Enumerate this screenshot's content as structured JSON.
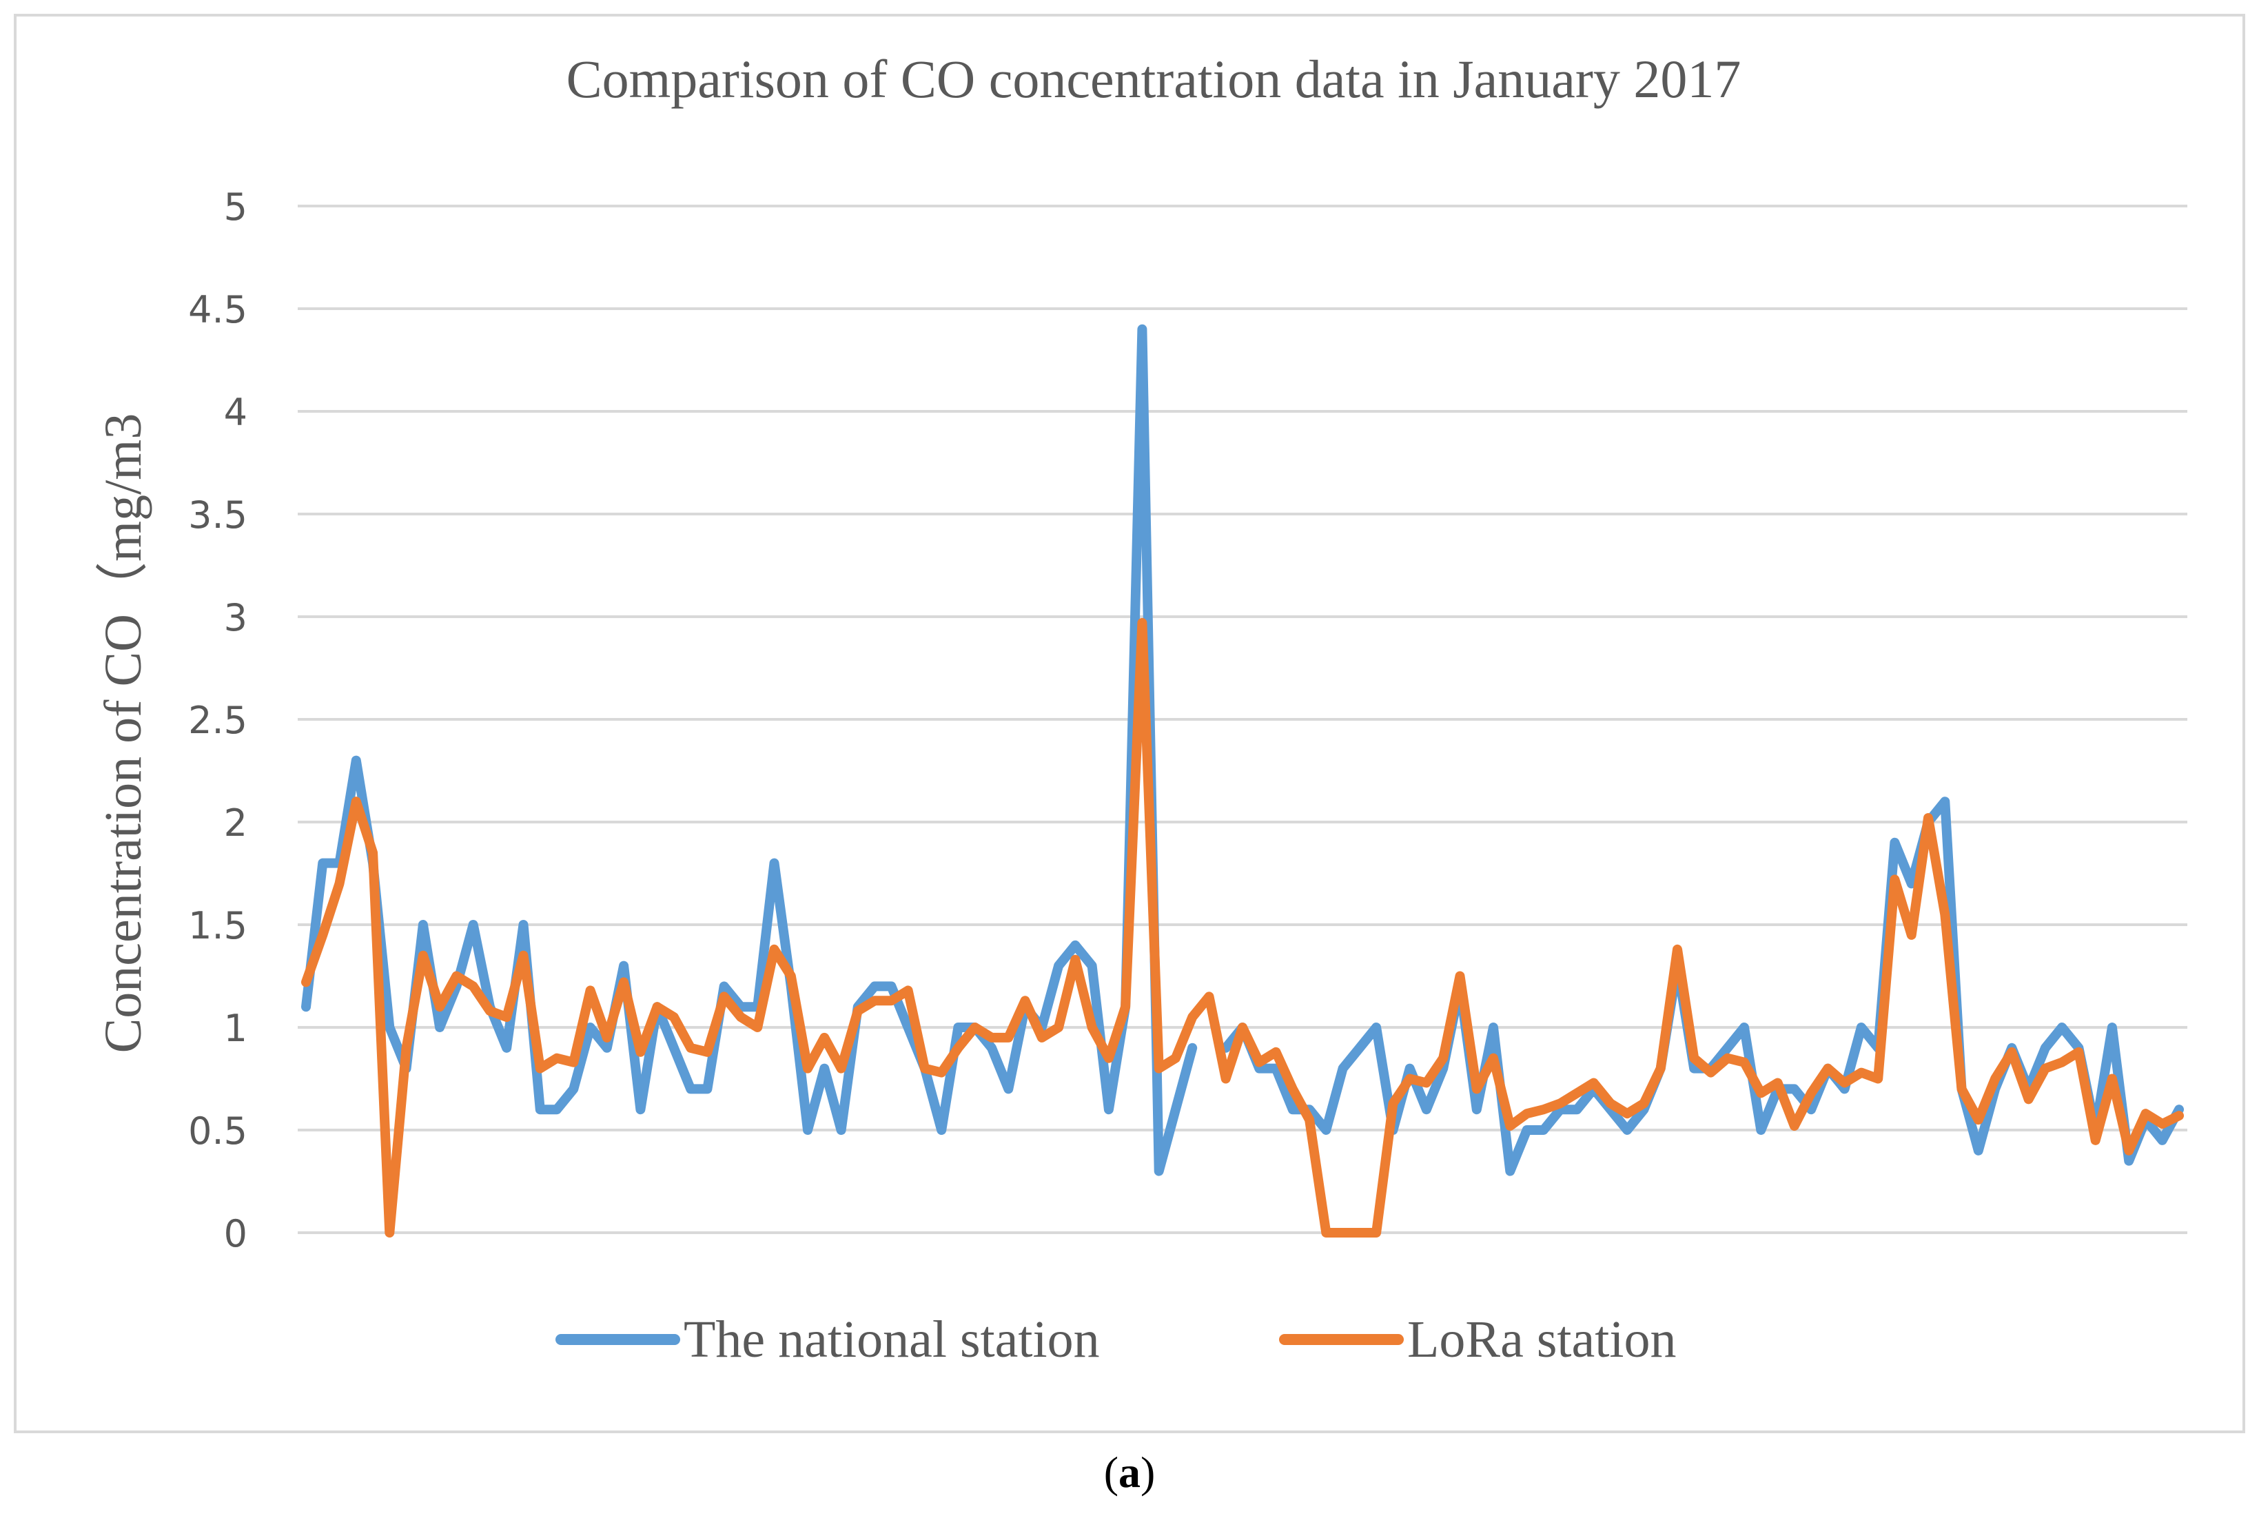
{
  "chart_data": {
    "type": "line",
    "title": "Comparison of CO concentration data in January 2017",
    "xlabel": "",
    "ylabel": "Concentration of CO（mg/m3",
    "ylim": [
      0,
      5
    ],
    "yticks": [
      "0",
      "0.5",
      "1",
      "1.5",
      "2",
      "2.5",
      "3",
      "3.5",
      "4",
      "4.5",
      "5"
    ],
    "grid": true,
    "legend_position": "bottom",
    "series": [
      {
        "name": "The national station",
        "color": "#5b9bd5",
        "values": [
          1.1,
          1.8,
          1.8,
          2.3,
          1.8,
          1.0,
          0.8,
          1.5,
          1.0,
          1.2,
          1.5,
          1.1,
          0.9,
          1.5,
          0.6,
          0.6,
          0.7,
          1.0,
          0.9,
          1.3,
          0.6,
          1.1,
          0.9,
          0.7,
          0.7,
          1.2,
          1.1,
          1.1,
          1.8,
          1.2,
          0.5,
          0.8,
          0.5,
          1.1,
          1.2,
          1.2,
          1.0,
          0.8,
          0.5,
          1.0,
          1.0,
          0.9,
          0.7,
          1.1,
          1.0,
          1.3,
          1.4,
          1.3,
          0.6,
          1.1,
          4.4,
          0.3,
          0.6,
          0.9,
          null,
          0.9,
          1.0,
          0.8,
          0.8,
          0.6,
          0.6,
          0.5,
          0.8,
          0.9,
          1.0,
          0.5,
          0.8,
          0.6,
          0.8,
          1.2,
          0.6,
          1.0,
          0.3,
          0.5,
          0.5,
          0.6,
          0.6,
          0.7,
          0.6,
          0.5,
          0.6,
          0.8,
          1.3,
          0.8,
          0.8,
          0.9,
          1.0,
          0.5,
          0.7,
          0.7,
          0.6,
          0.8,
          0.7,
          1.0,
          0.9,
          1.9,
          1.7,
          2.0,
          2.1,
          0.7,
          0.4,
          0.7,
          0.9,
          0.7,
          0.9,
          1.0,
          0.9,
          0.5,
          1.0,
          0.35,
          0.55,
          0.45,
          0.6
        ],
        "gap_x": [
          54,
          55
        ]
      },
      {
        "name": "LoRa station",
        "color": "#ed7d31",
        "values": [
          1.22,
          1.45,
          1.7,
          2.1,
          1.85,
          0.0,
          0.9,
          1.35,
          1.1,
          1.25,
          1.2,
          1.08,
          1.05,
          1.35,
          0.8,
          0.85,
          0.83,
          1.18,
          0.95,
          1.22,
          0.88,
          1.1,
          1.05,
          0.9,
          0.88,
          1.15,
          1.05,
          1.0,
          1.38,
          1.25,
          0.8,
          0.95,
          0.8,
          1.08,
          1.13,
          1.13,
          1.18,
          0.8,
          0.78,
          0.9,
          1.0,
          0.95,
          0.95,
          1.13,
          0.95,
          1.0,
          1.33,
          1.0,
          0.85,
          1.1,
          2.97,
          0.8,
          0.85,
          1.05,
          1.15,
          0.75,
          1.0,
          0.83,
          0.88,
          0.7,
          0.55,
          0.0,
          0.0,
          0.0,
          0.0,
          0.63,
          0.75,
          0.73,
          0.85,
          1.25,
          0.7,
          0.85,
          0.52,
          0.58,
          0.6,
          0.63,
          0.68,
          0.73,
          0.63,
          0.58,
          0.63,
          0.8,
          1.38,
          0.85,
          0.78,
          0.85,
          0.83,
          0.68,
          0.73,
          0.52,
          0.68,
          0.8,
          0.73,
          0.78,
          0.75,
          1.72,
          1.45,
          2.02,
          1.55,
          0.7,
          0.55,
          0.75,
          0.88,
          0.65,
          0.8,
          0.83,
          0.88,
          0.45,
          0.75,
          0.4,
          0.58,
          0.53,
          0.57
        ]
      }
    ]
  },
  "caption": {
    "open_paren": "(",
    "letter": "a",
    "close_paren": ")"
  }
}
